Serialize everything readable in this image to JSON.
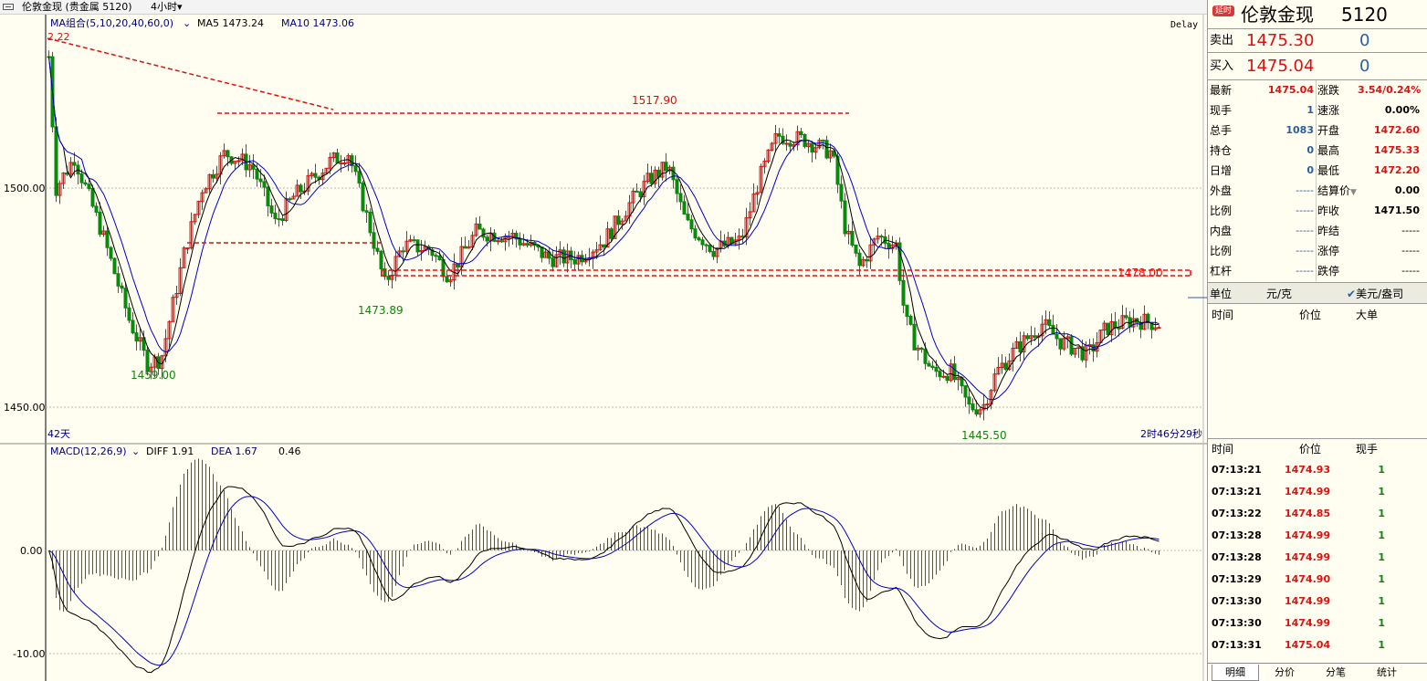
{
  "toolbar": {
    "product": "伦敦金现 (贵金属 5120)",
    "period": "4小时",
    "period_arrow": "▾"
  },
  "main": {
    "ma_label": "MA组合(5,10,20,40,60,0)",
    "ma5": "MA5 1473.24",
    "ma10": "MA10 1473.06",
    "delay": "Delay",
    "y_ticks": [
      "1500.00",
      "1450.00"
    ],
    "left_mark": "2.22",
    "days_label": "42天",
    "countdown": "2时46分29秒",
    "annotations": [
      "1517.90",
      "1473.89",
      "1459.00",
      "1445.50",
      "1478.00"
    ]
  },
  "macd": {
    "label": "MACD(12,26,9)",
    "diff": "DIFF 1.91",
    "dea": "DEA 1.67",
    "macd_val": "0.46",
    "y_ticks": [
      "0.00",
      "-10.00"
    ]
  },
  "panel": {
    "badge": "延时",
    "title": "伦敦金现",
    "code": "5120",
    "sell_label": "卖出",
    "sell_price": "1475.30",
    "sell_qty": "0",
    "buy_label": "买入",
    "buy_price": "1475.04",
    "buy_qty": "0",
    "stats_left": [
      {
        "label": "最新",
        "value": "1475.04"
      },
      {
        "label": "现手",
        "value": "1"
      },
      {
        "label": "总手",
        "value": "1083"
      },
      {
        "label": "持仓",
        "value": "0"
      },
      {
        "label": "日增",
        "value": "0"
      },
      {
        "label": "外盘",
        "value": "-----"
      },
      {
        "label": "比例",
        "value": "-----"
      },
      {
        "label": "内盘",
        "value": "-----"
      },
      {
        "label": "比例",
        "value": "-----"
      },
      {
        "label": "杠杆",
        "value": "-----"
      }
    ],
    "stats_right": [
      {
        "label": "涨跌",
        "value": "3.54/0.24%"
      },
      {
        "label": "速涨",
        "value": "0.00%"
      },
      {
        "label": "开盘",
        "value": "1472.60"
      },
      {
        "label": "最高",
        "value": "1475.33"
      },
      {
        "label": "最低",
        "value": "1472.20"
      },
      {
        "label": "结算价",
        "value": "0.00"
      },
      {
        "label": "昨收",
        "value": "1471.50"
      },
      {
        "label": "昨结",
        "value": "-----"
      },
      {
        "label": "涨停",
        "value": "-----"
      },
      {
        "label": "跌停",
        "value": "-----"
      }
    ],
    "unit_label": "单位",
    "unit_value": "元/克",
    "unit_check": "✔",
    "unit_alt": "美元/盎司",
    "big_headers": [
      "时间",
      "价位",
      "大单"
    ],
    "tick_headers": [
      "时间",
      "价位",
      "现手"
    ],
    "ticks": [
      {
        "time": "07:13:21",
        "price": "1474.93",
        "qty": "1"
      },
      {
        "time": "07:13:21",
        "price": "1474.99",
        "qty": "1"
      },
      {
        "time": "07:13:22",
        "price": "1474.85",
        "qty": "1"
      },
      {
        "time": "07:13:28",
        "price": "1474.99",
        "qty": "1"
      },
      {
        "time": "07:13:28",
        "price": "1474.99",
        "qty": "1"
      },
      {
        "time": "07:13:29",
        "price": "1474.90",
        "qty": "1"
      },
      {
        "time": "07:13:30",
        "price": "1474.99",
        "qty": "1"
      },
      {
        "time": "07:13:30",
        "price": "1474.99",
        "qty": "1"
      },
      {
        "time": "07:13:31",
        "price": "1475.04",
        "qty": "1"
      }
    ],
    "tabs": [
      "明细",
      "分价",
      "分笔",
      "统计"
    ]
  },
  "colors": {
    "bg": "#fffef0",
    "up": "#e01010",
    "down": "#0a8a0a",
    "ma_fast": "#000000",
    "ma_slow": "#0000cc"
  }
}
